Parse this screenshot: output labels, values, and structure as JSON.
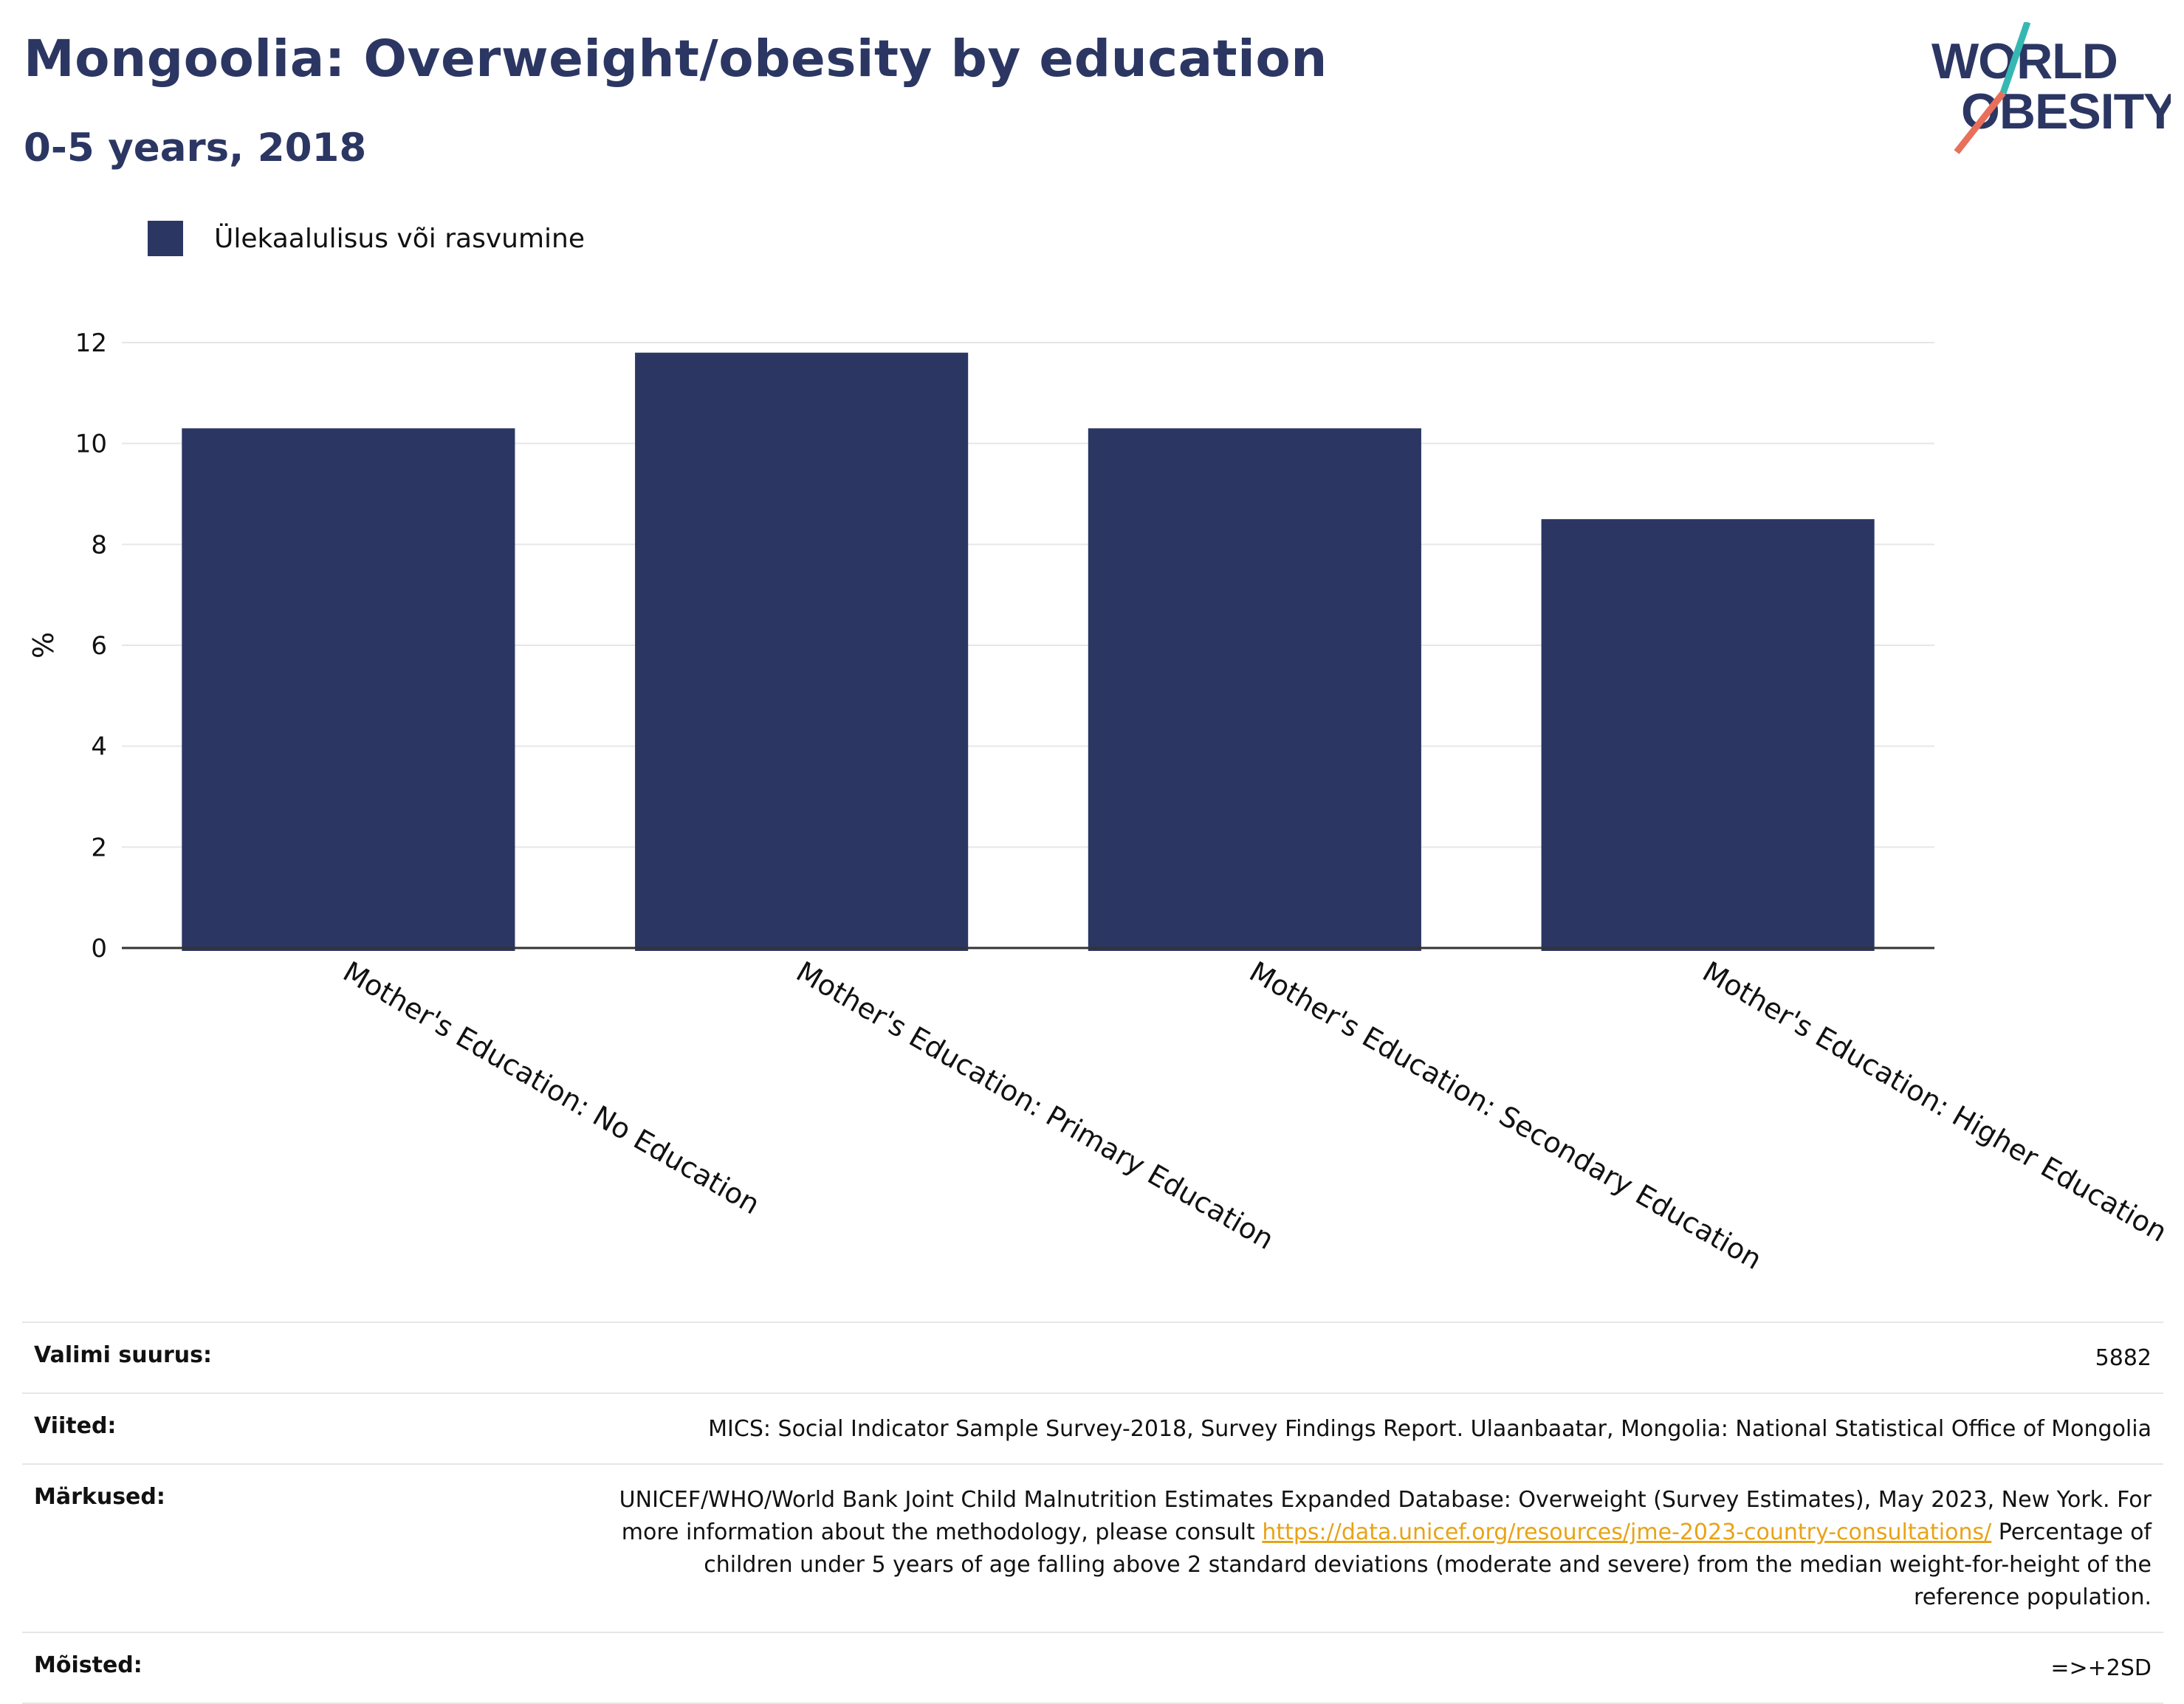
{
  "header": {
    "title": "Mongoolia: Overweight/obesity by education",
    "subtitle": "0-5 years, 2018"
  },
  "logo": {
    "line1": "WORLD",
    "line2": "OBESITY",
    "text_color": "#2b3663",
    "slash_top_color": "#35b8b2",
    "slash_bottom_color": "#e8705a"
  },
  "colors": {
    "bar": "#2b3663",
    "grid": "#e6e6e6",
    "axis": "#333333",
    "link": "#e8a317"
  },
  "chart_data": {
    "type": "bar",
    "categories": [
      "Mother's Education: No Education",
      "Mother's Education: Primary Education",
      "Mother's Education: Secondary Education",
      "Mother's Education: Higher Education"
    ],
    "series": [
      {
        "name": "Ülekaalulisus või rasvumine",
        "values": [
          10.3,
          11.8,
          10.3,
          8.5
        ]
      }
    ],
    "ylabel": "%",
    "xlabel": "",
    "ylim": [
      0,
      12
    ],
    "yticks": [
      0,
      2,
      4,
      6,
      8,
      10,
      12
    ],
    "grid": true,
    "legend_position": "top-left"
  },
  "info": {
    "sample_size": {
      "label": "Valimi suurus:",
      "value": "5882"
    },
    "references": {
      "label": "Viited:",
      "value": "MICS: Social Indicator Sample Survey-2018, Survey Findings Report. Ulaanbaatar, Mongolia: National Statistical Office of Mongolia"
    },
    "notes": {
      "label": "Märkused:",
      "text_before_link": "UNICEF/WHO/World Bank Joint Child Malnutrition Estimates Expanded Database: Overweight (Survey Estimates), May 2023, New York. For more information about the methodology, please consult ",
      "link": "https://data.unicef.org/resources/jme-2023-country-consultations/",
      "text_after_link": " Percentage of children under 5 years of age falling above 2 standard deviations (moderate and severe) from the median weight-for-height of the reference population."
    },
    "definitions": {
      "label": "Mõisted:",
      "value": "=>+2SD"
    }
  }
}
